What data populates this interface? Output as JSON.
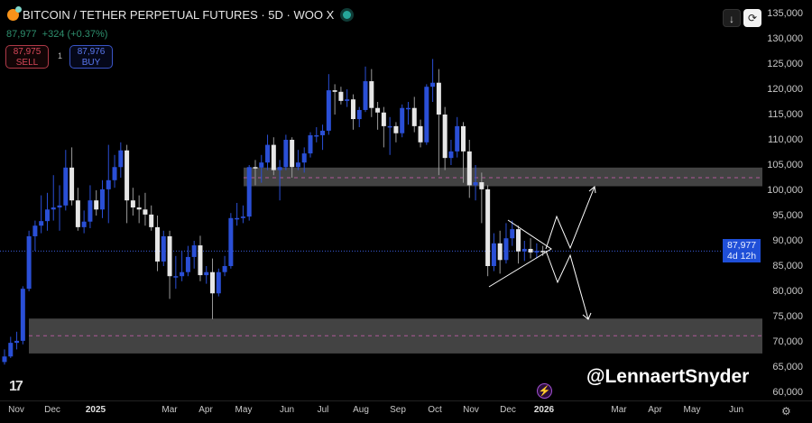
{
  "header": {
    "title": "BITCOIN / TETHER PERPETUAL FUTURES · 5D · WOO X",
    "last_price": "87,977",
    "change": "+324 (+0.37%)",
    "sell_price": "87,975",
    "sell_label": "SELL",
    "buy_price": "87,976",
    "buy_label": "BUY",
    "quantity": "1",
    "status_color": "#26a69a"
  },
  "toolbar": {
    "scroll_icon": "arrow-down-icon",
    "scale_icon": "auto-scale-icon",
    "scroll_glyph": "↓",
    "scale_glyph": "⟳"
  },
  "price_label": {
    "price": "87,977",
    "countdown": "4d 12h"
  },
  "watermark": "@LennaertSnyder",
  "logo": "TV",
  "colors": {
    "up": "#2a4fd6",
    "down": "#e6e6e6",
    "zone": "#4a4a4a",
    "zone_mid": "#b05a9a",
    "price_line": "#3a5bd9"
  },
  "chart_data": {
    "type": "candlestick",
    "ylim": [
      60000,
      135000
    ],
    "y_ticks": [
      "135,000",
      "130,000",
      "125,000",
      "120,000",
      "115,000",
      "110,000",
      "105,000",
      "100,000",
      "95,000",
      "90,000",
      "85,000",
      "80,000",
      "75,000",
      "70,000",
      "65,000",
      "60,000"
    ],
    "x_ticks": [
      "Nov",
      "Dec",
      "2025",
      "Mar",
      "Apr",
      "May",
      "Jun",
      "Jul",
      "Aug",
      "Sep",
      "Oct",
      "Nov",
      "Dec",
      "2026",
      "Mar",
      "Apr",
      "May",
      "Jun"
    ],
    "zones": [
      {
        "low": 100800,
        "high": 104500,
        "mid": 102500
      },
      {
        "low": 67700,
        "high": 74600,
        "mid": 71200
      }
    ],
    "last_price": 87977,
    "candles": [
      [
        66000,
        68500,
        65500,
        67100
      ],
      [
        67100,
        71000,
        66800,
        69800
      ],
      [
        69800,
        72000,
        68500,
        70200
      ],
      [
        70200,
        81000,
        69500,
        80500
      ],
      [
        80500,
        92000,
        80000,
        90900
      ],
      [
        90900,
        94000,
        88000,
        93000
      ],
      [
        93000,
        99000,
        91500,
        93900
      ],
      [
        93900,
        99500,
        92000,
        96200
      ],
      [
        96200,
        103000,
        94000,
        96600
      ],
      [
        96600,
        101000,
        92000,
        97000
      ],
      [
        97000,
        108000,
        96000,
        104500
      ],
      [
        104500,
        108500,
        97000,
        98000
      ],
      [
        98000,
        100500,
        92000,
        92700
      ],
      [
        92700,
        96000,
        91500,
        93800
      ],
      [
        93800,
        101000,
        92500,
        98000
      ],
      [
        98000,
        100000,
        95000,
        96200
      ],
      [
        96200,
        102000,
        94500,
        100200
      ],
      [
        100200,
        109000,
        93500,
        102000
      ],
      [
        102000,
        107000,
        100500,
        104600
      ],
      [
        104600,
        109500,
        102500,
        107900
      ],
      [
        107900,
        109000,
        93500,
        98000
      ],
      [
        98000,
        100500,
        95000,
        96600
      ],
      [
        96600,
        99000,
        93500,
        96200
      ],
      [
        96200,
        99500,
        93000,
        95200
      ],
      [
        95200,
        97000,
        92000,
        92700
      ],
      [
        92700,
        95000,
        84000,
        85900
      ],
      [
        85900,
        92000,
        85000,
        90900
      ],
      [
        90900,
        92000,
        78500,
        83000
      ],
      [
        83000,
        87000,
        80500,
        83000
      ],
      [
        83000,
        88000,
        82000,
        83800
      ],
      [
        83800,
        89000,
        83000,
        86800
      ],
      [
        86800,
        90000,
        84500,
        89100
      ],
      [
        89100,
        91000,
        82000,
        83200
      ],
      [
        83200,
        85000,
        81500,
        83800
      ],
      [
        83800,
        86500,
        74500,
        79600
      ],
      [
        79600,
        84500,
        79000,
        83800
      ],
      [
        83800,
        87000,
        83000,
        85000
      ],
      [
        85000,
        95500,
        84500,
        94500
      ],
      [
        94500,
        97500,
        93000,
        94500
      ],
      [
        94500,
        97000,
        93500,
        94800
      ],
      [
        94800,
        105000,
        94000,
        104600
      ],
      [
        104600,
        106000,
        101000,
        104500
      ],
      [
        104500,
        107000,
        101500,
        105500
      ],
      [
        105500,
        111000,
        104000,
        109000
      ],
      [
        109000,
        110500,
        103000,
        104000
      ],
      [
        104000,
        106000,
        98000,
        104600
      ],
      [
        104600,
        111000,
        104000,
        110000
      ],
      [
        110000,
        110500,
        102500,
        104600
      ],
      [
        104600,
        108000,
        104000,
        105500
      ],
      [
        105500,
        108500,
        103500,
        107300
      ],
      [
        107300,
        111500,
        106500,
        110900
      ],
      [
        110900,
        112500,
        109500,
        110900
      ],
      [
        110900,
        113000,
        108000,
        111800
      ],
      [
        111800,
        123000,
        111000,
        119800
      ],
      [
        119800,
        121000,
        115000,
        119500
      ],
      [
        119500,
        120500,
        117000,
        117700
      ],
      [
        117700,
        120000,
        116500,
        118000
      ],
      [
        118000,
        119000,
        112000,
        114100
      ],
      [
        114100,
        116500,
        112500,
        115900
      ],
      [
        115900,
        124500,
        115500,
        121600
      ],
      [
        121600,
        124000,
        114500,
        116300
      ],
      [
        116300,
        117500,
        112000,
        115400
      ],
      [
        115400,
        116500,
        108500,
        112700
      ],
      [
        112700,
        114500,
        107000,
        112700
      ],
      [
        112700,
        113500,
        109500,
        111300
      ],
      [
        111300,
        117000,
        110500,
        116300
      ],
      [
        116300,
        117500,
        113000,
        116300
      ],
      [
        116300,
        118500,
        111500,
        112700
      ],
      [
        112700,
        114000,
        108500,
        109500
      ],
      [
        109500,
        121000,
        109000,
        120500
      ],
      [
        120500,
        126000,
        117500,
        121300
      ],
      [
        121300,
        124000,
        103000,
        115000
      ],
      [
        115000,
        116500,
        104000,
        106400
      ],
      [
        106400,
        110000,
        105000,
        107700
      ],
      [
        107700,
        114500,
        106500,
        112700
      ],
      [
        112700,
        113500,
        101500,
        107700
      ],
      [
        107700,
        110000,
        98500,
        101000
      ],
      [
        101000,
        105000,
        98000,
        101600
      ],
      [
        101600,
        103500,
        93500,
        100200
      ],
      [
        100200,
        101000,
        83000,
        85000
      ],
      [
        85000,
        91500,
        84000,
        89500
      ],
      [
        89500,
        92000,
        83500,
        86200
      ],
      [
        86200,
        93500,
        85500,
        90500
      ],
      [
        90500,
        94000,
        89000,
        92300
      ],
      [
        92300,
        93000,
        85500,
        87900
      ],
      [
        87900,
        90000,
        86000,
        88400
      ],
      [
        88400,
        90500,
        86500,
        87700
      ],
      [
        87700,
        89500,
        86500,
        88000
      ],
      [
        88000,
        89000,
        87000,
        87977
      ]
    ]
  }
}
